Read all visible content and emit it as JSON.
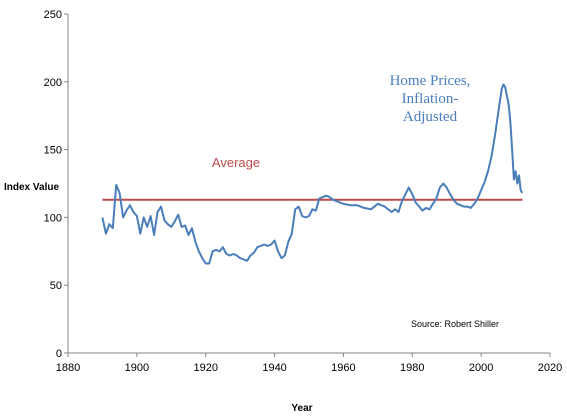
{
  "chart_data": {
    "type": "line",
    "title": "",
    "xlabel": "Year",
    "ylabel": "Index Value",
    "xlim": [
      1880,
      2020
    ],
    "ylim": [
      0,
      250
    ],
    "xticks": [
      1880,
      1900,
      1920,
      1940,
      1960,
      1980,
      2000,
      2020
    ],
    "yticks": [
      0,
      50,
      100,
      150,
      200,
      250
    ],
    "grid": false,
    "colors": {
      "series": "#4a7ebb",
      "average": "#be4b48"
    },
    "annotations": {
      "series_label": [
        "Home Prices,",
        "Inflation-",
        "Adjusted"
      ],
      "average_label": "Average",
      "source": "Source: Robert Shiller"
    },
    "average": {
      "value": 113,
      "x_range": [
        1890,
        2012
      ]
    },
    "series": [
      {
        "x": [
          1890,
          1891,
          1892,
          1893,
          1894,
          1895,
          1896,
          1897,
          1898,
          1899,
          1900,
          1901,
          1902,
          1903,
          1904,
          1905,
          1906,
          1907,
          1908,
          1909,
          1910,
          1911,
          1912,
          1913,
          1914,
          1915,
          1916,
          1917,
          1918,
          1919,
          1920,
          1921,
          1922,
          1923,
          1924,
          1925,
          1926,
          1927,
          1928,
          1929,
          1930,
          1931,
          1932,
          1933,
          1934,
          1935,
          1936,
          1937,
          1938,
          1939,
          1940,
          1941,
          1942,
          1943,
          1944,
          1945,
          1946,
          1947,
          1948,
          1949,
          1950,
          1951,
          1952,
          1953,
          1954,
          1955,
          1956,
          1957,
          1958,
          1959,
          1960,
          1962,
          1964,
          1966,
          1968,
          1970,
          1972,
          1974,
          1975,
          1976,
          1977,
          1978,
          1979,
          1980,
          1981,
          1982,
          1983,
          1984,
          1985,
          1986,
          1987,
          1988,
          1989,
          1990,
          1991,
          1992,
          1993,
          1994,
          1995,
          1996,
          1997,
          1998,
          1999,
          2000,
          2001,
          2002,
          2003,
          2004,
          2005,
          2006,
          2006.5,
          2007,
          2008,
          2008.5,
          2009,
          2009.5,
          2010,
          2010.5,
          2011,
          2011.5,
          2012
        ],
        "values": [
          100,
          88,
          95,
          92,
          124,
          118,
          100,
          105,
          109,
          104,
          101,
          88,
          100,
          93,
          101,
          87,
          104,
          108,
          98,
          95,
          93,
          97,
          102,
          93,
          94,
          87,
          92,
          82,
          75,
          70,
          66,
          66,
          75,
          76,
          75,
          78,
          73,
          72,
          73,
          72,
          70,
          69,
          68,
          72,
          74,
          78,
          79,
          80,
          79,
          80,
          83,
          75,
          70,
          72,
          82,
          88,
          106,
          108,
          101,
          100,
          101,
          106,
          105,
          114,
          115,
          116,
          115,
          113,
          112,
          111,
          110,
          109,
          109,
          107,
          106,
          110,
          108,
          104,
          106,
          104,
          112,
          117,
          122,
          117,
          111,
          108,
          105,
          107,
          106,
          110,
          114,
          122,
          125,
          122,
          117,
          113,
          110,
          109,
          108,
          108,
          107,
          110,
          114,
          120,
          126,
          134,
          145,
          160,
          178,
          195,
          198,
          196,
          183,
          170,
          150,
          128,
          134,
          125,
          131,
          120,
          118
        ]
      }
    ]
  }
}
